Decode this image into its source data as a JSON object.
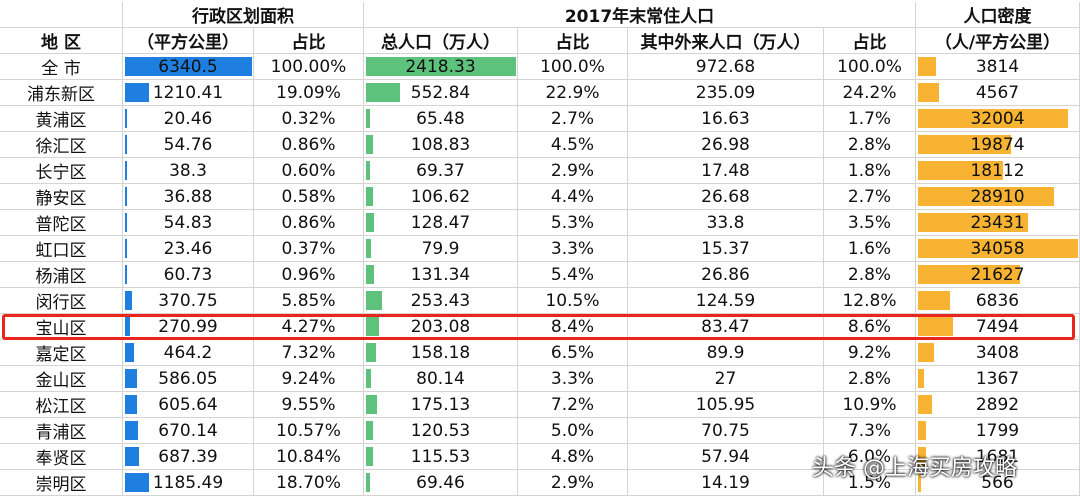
{
  "header": {
    "group_area": "行政区划面积",
    "group_pop": "2017年末常住人口",
    "group_density": "人口密度",
    "col_district": "地 区",
    "col_area": "（平方公里）",
    "col_area_share": "占比",
    "col_pop": "总人口（万人）",
    "col_pop_share": "占比",
    "col_migrant": "其中外来人口（万人）",
    "col_migrant_share": "占比",
    "col_density": "（人/平方公里）"
  },
  "colors": {
    "area_bar": "#1f7fe0",
    "pop_bar": "#5cc27c",
    "density_bar": "#f7b331",
    "highlight": "#e8261d"
  },
  "max": {
    "area": 6340.5,
    "pop": 2418.33,
    "density": 34058
  },
  "rows": [
    {
      "name": "全 市",
      "area": "6340.5",
      "area_pct": "100.00%",
      "pop": "2418.33",
      "pop_pct": "100.0%",
      "migrant": "972.68",
      "migrant_pct": "100.0%",
      "density": "3814",
      "area_n": 6340.5,
      "pop_n": 2418.33,
      "density_n": 3814
    },
    {
      "name": "浦东新区",
      "area": "1210.41",
      "area_pct": "19.09%",
      "pop": "552.84",
      "pop_pct": "22.9%",
      "migrant": "235.09",
      "migrant_pct": "24.2%",
      "density": "4567",
      "area_n": 1210.41,
      "pop_n": 552.84,
      "density_n": 4567
    },
    {
      "name": "黄浦区",
      "area": "20.46",
      "area_pct": "0.32%",
      "pop": "65.48",
      "pop_pct": "2.7%",
      "migrant": "16.63",
      "migrant_pct": "1.7%",
      "density": "32004",
      "area_n": 20.46,
      "pop_n": 65.48,
      "density_n": 32004
    },
    {
      "name": "徐汇区",
      "area": "54.76",
      "area_pct": "0.86%",
      "pop": "108.83",
      "pop_pct": "4.5%",
      "migrant": "26.98",
      "migrant_pct": "2.8%",
      "density": "19874",
      "area_n": 54.76,
      "pop_n": 108.83,
      "density_n": 19874
    },
    {
      "name": "长宁区",
      "area": "38.3",
      "area_pct": "0.60%",
      "pop": "69.37",
      "pop_pct": "2.9%",
      "migrant": "17.48",
      "migrant_pct": "1.8%",
      "density": "18112",
      "area_n": 38.3,
      "pop_n": 69.37,
      "density_n": 18112
    },
    {
      "name": "静安区",
      "area": "36.88",
      "area_pct": "0.58%",
      "pop": "106.62",
      "pop_pct": "4.4%",
      "migrant": "26.68",
      "migrant_pct": "2.7%",
      "density": "28910",
      "area_n": 36.88,
      "pop_n": 106.62,
      "density_n": 28910
    },
    {
      "name": "普陀区",
      "area": "54.83",
      "area_pct": "0.86%",
      "pop": "128.47",
      "pop_pct": "5.3%",
      "migrant": "33.8",
      "migrant_pct": "3.5%",
      "density": "23431",
      "area_n": 54.83,
      "pop_n": 128.47,
      "density_n": 23431
    },
    {
      "name": "虹口区",
      "area": "23.46",
      "area_pct": "0.37%",
      "pop": "79.9",
      "pop_pct": "3.3%",
      "migrant": "15.37",
      "migrant_pct": "1.6%",
      "density": "34058",
      "area_n": 23.46,
      "pop_n": 79.9,
      "density_n": 34058
    },
    {
      "name": "杨浦区",
      "area": "60.73",
      "area_pct": "0.96%",
      "pop": "131.34",
      "pop_pct": "5.4%",
      "migrant": "26.86",
      "migrant_pct": "2.8%",
      "density": "21627",
      "area_n": 60.73,
      "pop_n": 131.34,
      "density_n": 21627
    },
    {
      "name": "闵行区",
      "area": "370.75",
      "area_pct": "5.85%",
      "pop": "253.43",
      "pop_pct": "10.5%",
      "migrant": "124.59",
      "migrant_pct": "12.8%",
      "density": "6836",
      "area_n": 370.75,
      "pop_n": 253.43,
      "density_n": 6836
    },
    {
      "name": "宝山区",
      "area": "270.99",
      "area_pct": "4.27%",
      "pop": "203.08",
      "pop_pct": "8.4%",
      "migrant": "83.47",
      "migrant_pct": "8.6%",
      "density": "7494",
      "area_n": 270.99,
      "pop_n": 203.08,
      "density_n": 7494,
      "highlighted": true
    },
    {
      "name": "嘉定区",
      "area": "464.2",
      "area_pct": "7.32%",
      "pop": "158.18",
      "pop_pct": "6.5%",
      "migrant": "89.9",
      "migrant_pct": "9.2%",
      "density": "3408",
      "area_n": 464.2,
      "pop_n": 158.18,
      "density_n": 3408
    },
    {
      "name": "金山区",
      "area": "586.05",
      "area_pct": "9.24%",
      "pop": "80.14",
      "pop_pct": "3.3%",
      "migrant": "27",
      "migrant_pct": "2.8%",
      "density": "1367",
      "area_n": 586.05,
      "pop_n": 80.14,
      "density_n": 1367
    },
    {
      "name": "松江区",
      "area": "605.64",
      "area_pct": "9.55%",
      "pop": "175.13",
      "pop_pct": "7.2%",
      "migrant": "105.95",
      "migrant_pct": "10.9%",
      "density": "2892",
      "area_n": 605.64,
      "pop_n": 175.13,
      "density_n": 2892
    },
    {
      "name": "青浦区",
      "area": "670.14",
      "area_pct": "10.57%",
      "pop": "120.53",
      "pop_pct": "5.0%",
      "migrant": "70.75",
      "migrant_pct": "7.3%",
      "density": "1799",
      "area_n": 670.14,
      "pop_n": 120.53,
      "density_n": 1799
    },
    {
      "name": "奉贤区",
      "area": "687.39",
      "area_pct": "10.84%",
      "pop": "115.53",
      "pop_pct": "4.8%",
      "migrant": "57.94",
      "migrant_pct": "6.0%",
      "density": "1681",
      "area_n": 687.39,
      "pop_n": 115.53,
      "density_n": 1681
    },
    {
      "name": "崇明区",
      "area": "1185.49",
      "area_pct": "18.70%",
      "pop": "69.46",
      "pop_pct": "2.9%",
      "migrant": "14.19",
      "migrant_pct": "1.5%",
      "density": "566",
      "area_n": 1185.49,
      "pop_n": 69.46,
      "density_n": 566
    }
  ],
  "watermark": "头条 @上海买房攻略"
}
